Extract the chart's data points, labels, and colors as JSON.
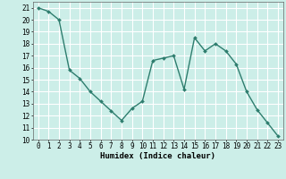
{
  "x": [
    0,
    1,
    2,
    3,
    4,
    5,
    6,
    7,
    8,
    9,
    10,
    11,
    12,
    13,
    14,
    15,
    16,
    17,
    18,
    19,
    20,
    21,
    22,
    23
  ],
  "y": [
    21.0,
    20.7,
    20.0,
    15.8,
    15.1,
    14.0,
    13.2,
    12.4,
    11.6,
    12.6,
    13.2,
    16.6,
    16.8,
    17.0,
    14.2,
    18.5,
    17.4,
    18.0,
    17.4,
    16.3,
    14.0,
    12.5,
    11.4,
    10.3
  ],
  "line_color": "#2e7d6e",
  "marker": "D",
  "marker_size": 2.0,
  "bg_color": "#cceee8",
  "grid_color": "#ffffff",
  "xlabel": "Humidex (Indice chaleur)",
  "ylabel": "",
  "xlim": [
    -0.5,
    23.5
  ],
  "ylim": [
    10,
    21.5
  ],
  "yticks": [
    10,
    11,
    12,
    13,
    14,
    15,
    16,
    17,
    18,
    19,
    20,
    21
  ],
  "xticks": [
    0,
    1,
    2,
    3,
    4,
    5,
    6,
    7,
    8,
    9,
    10,
    11,
    12,
    13,
    14,
    15,
    16,
    17,
    18,
    19,
    20,
    21,
    22,
    23
  ],
  "label_fontsize": 6.5,
  "tick_fontsize": 5.5,
  "linewidth": 1.0
}
